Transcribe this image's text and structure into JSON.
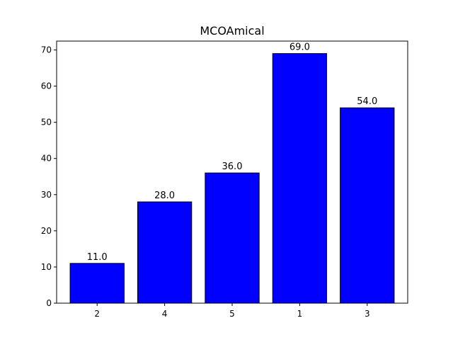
{
  "chart_data": {
    "type": "bar",
    "title": "MCOAmical",
    "xlabel": "",
    "ylabel": "",
    "categories": [
      "2",
      "4",
      "5",
      "1",
      "3"
    ],
    "values": [
      11,
      28,
      36,
      69,
      54
    ],
    "data_labels": [
      "11.0",
      "28.0",
      "36.0",
      "69.0",
      "54.0"
    ],
    "ylim": [
      0,
      72.45
    ],
    "yticks": [
      0,
      10,
      20,
      30,
      40,
      50,
      60,
      70
    ],
    "ytick_labels": [
      "0",
      "10",
      "20",
      "30",
      "40",
      "50",
      "60",
      "70"
    ],
    "bar_color": "#0000ff",
    "edge_color": "#000000",
    "grid": false,
    "legend": "none"
  }
}
